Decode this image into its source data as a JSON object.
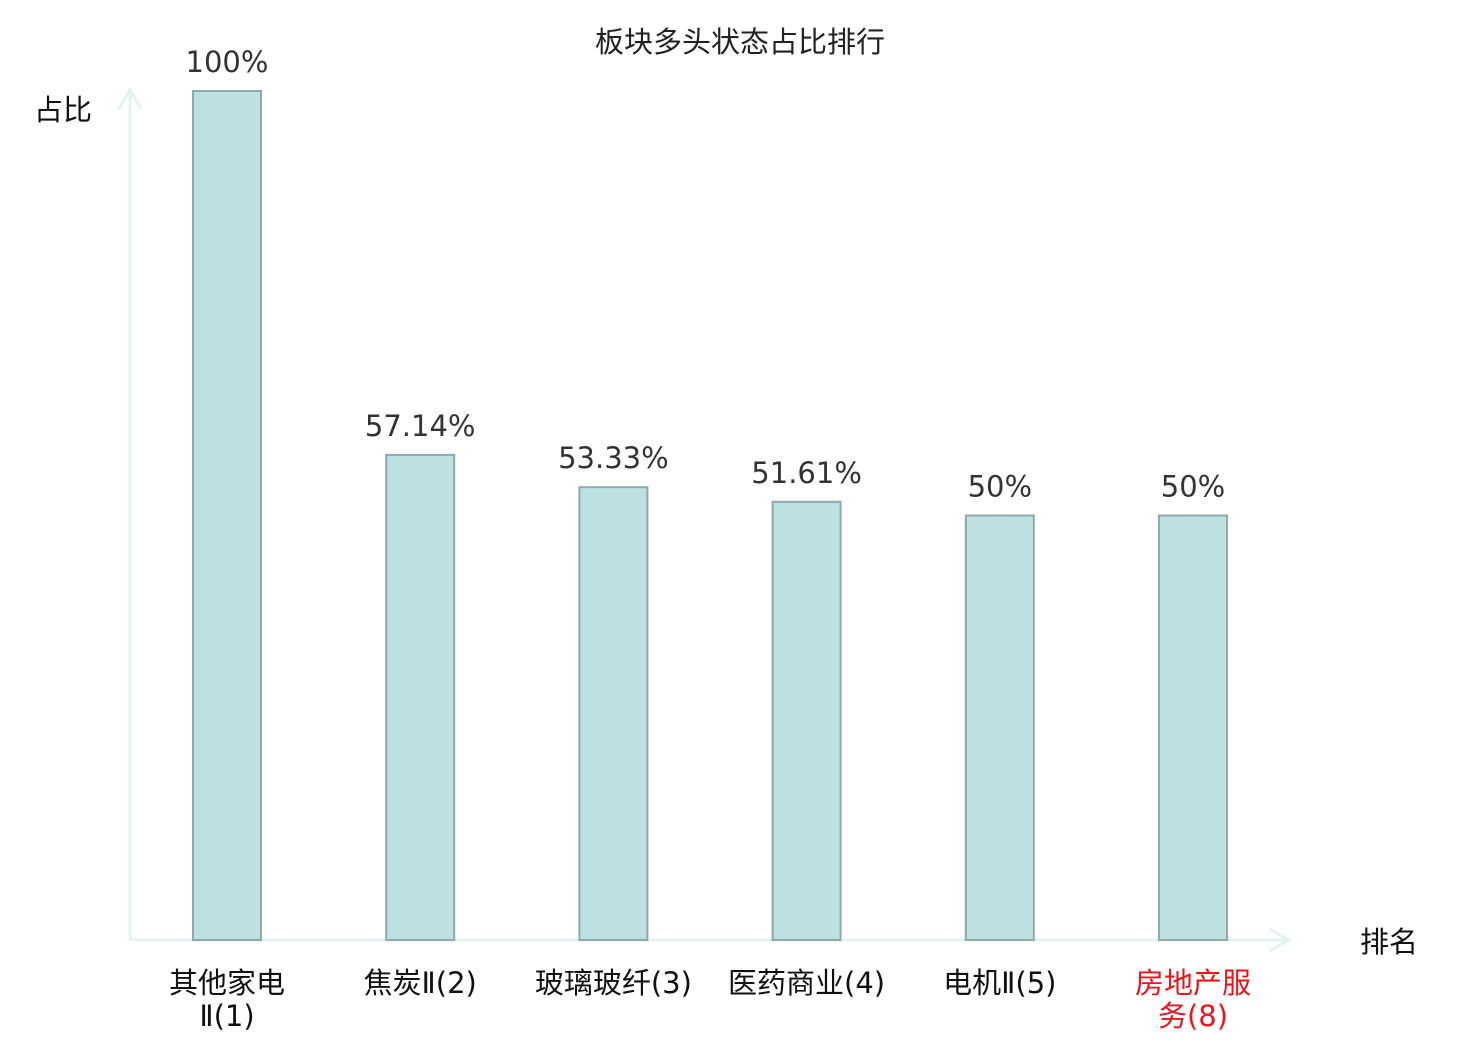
{
  "chart_data": {
    "type": "bar",
    "title": "板块多头状态占比排行",
    "xlabel": "排名",
    "ylabel": "占比",
    "ylim": [
      0,
      100
    ],
    "grid": false,
    "legend": "none",
    "categories": [
      [
        "其他家电",
        "Ⅱ(1)"
      ],
      [
        "焦炭Ⅱ(2)"
      ],
      [
        "玻璃玻纤(3)"
      ],
      [
        "医药商业(4)"
      ],
      [
        "电机Ⅱ(5)"
      ],
      [
        "房地产服",
        "务(8)"
      ]
    ],
    "values": [
      100,
      57.14,
      53.33,
      51.61,
      50,
      50
    ],
    "value_labels": [
      "100%",
      "57.14%",
      "53.33%",
      "51.61%",
      "50%",
      "50%"
    ],
    "highlighted_categories": [
      5
    ],
    "colors": {
      "bar_fill": "#bde0e3",
      "bar_stroke": "#8fa9ad",
      "axis": "#e2f3f1",
      "text": "#333333",
      "category_text": "#111111",
      "highlight_text": "#e8151b"
    }
  }
}
